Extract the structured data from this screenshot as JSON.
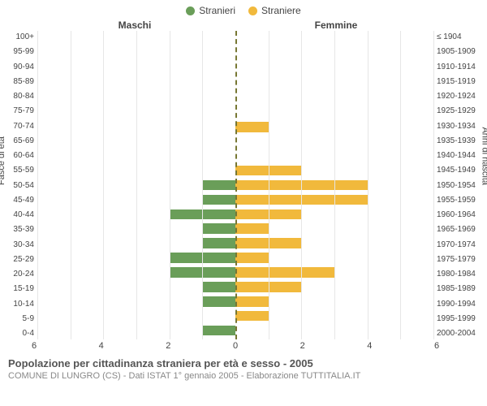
{
  "legend": {
    "male": {
      "label": "Stranieri",
      "color": "#6a9e59"
    },
    "female": {
      "label": "Straniere",
      "color": "#f1b93c"
    }
  },
  "column_titles": {
    "left": "Maschi",
    "right": "Femmine"
  },
  "axis_labels": {
    "left": "Fasce di età",
    "right": "Anni di nascita"
  },
  "chart": {
    "type": "population-pyramid",
    "background_color": "#ffffff",
    "grid_color": "#e6e6e6",
    "center_line_color": "#7a7a33",
    "text_color": "#444444",
    "x_max": 6,
    "x_ticks": [
      6,
      4,
      2,
      0,
      2,
      4,
      6
    ],
    "bar_height_ratio": 0.7,
    "rows": [
      {
        "age": "100+",
        "birth": "≤ 1904",
        "m": 0,
        "f": 0
      },
      {
        "age": "95-99",
        "birth": "1905-1909",
        "m": 0,
        "f": 0
      },
      {
        "age": "90-94",
        "birth": "1910-1914",
        "m": 0,
        "f": 0
      },
      {
        "age": "85-89",
        "birth": "1915-1919",
        "m": 0,
        "f": 0
      },
      {
        "age": "80-84",
        "birth": "1920-1924",
        "m": 0,
        "f": 0
      },
      {
        "age": "75-79",
        "birth": "1925-1929",
        "m": 0,
        "f": 0
      },
      {
        "age": "70-74",
        "birth": "1930-1934",
        "m": 0,
        "f": 1
      },
      {
        "age": "65-69",
        "birth": "1935-1939",
        "m": 0,
        "f": 0
      },
      {
        "age": "60-64",
        "birth": "1940-1944",
        "m": 0,
        "f": 0
      },
      {
        "age": "55-59",
        "birth": "1945-1949",
        "m": 0,
        "f": 2
      },
      {
        "age": "50-54",
        "birth": "1950-1954",
        "m": 1,
        "f": 4
      },
      {
        "age": "45-49",
        "birth": "1955-1959",
        "m": 1,
        "f": 4
      },
      {
        "age": "40-44",
        "birth": "1960-1964",
        "m": 2,
        "f": 2
      },
      {
        "age": "35-39",
        "birth": "1965-1969",
        "m": 1,
        "f": 1
      },
      {
        "age": "30-34",
        "birth": "1970-1974",
        "m": 1,
        "f": 2
      },
      {
        "age": "25-29",
        "birth": "1975-1979",
        "m": 2,
        "f": 1
      },
      {
        "age": "20-24",
        "birth": "1980-1984",
        "m": 2,
        "f": 3
      },
      {
        "age": "15-19",
        "birth": "1985-1989",
        "m": 1,
        "f": 2
      },
      {
        "age": "10-14",
        "birth": "1990-1994",
        "m": 1,
        "f": 1
      },
      {
        "age": "5-9",
        "birth": "1995-1999",
        "m": 0,
        "f": 1
      },
      {
        "age": "0-4",
        "birth": "2000-2004",
        "m": 1,
        "f": 0
      }
    ]
  },
  "footer": {
    "title": "Popolazione per cittadinanza straniera per età e sesso - 2005",
    "subtitle": "COMUNE DI LUNGRO (CS) - Dati ISTAT 1° gennaio 2005 - Elaborazione TUTTITALIA.IT"
  },
  "layout": {
    "y_left_width": 42,
    "y_right_width": 62
  }
}
